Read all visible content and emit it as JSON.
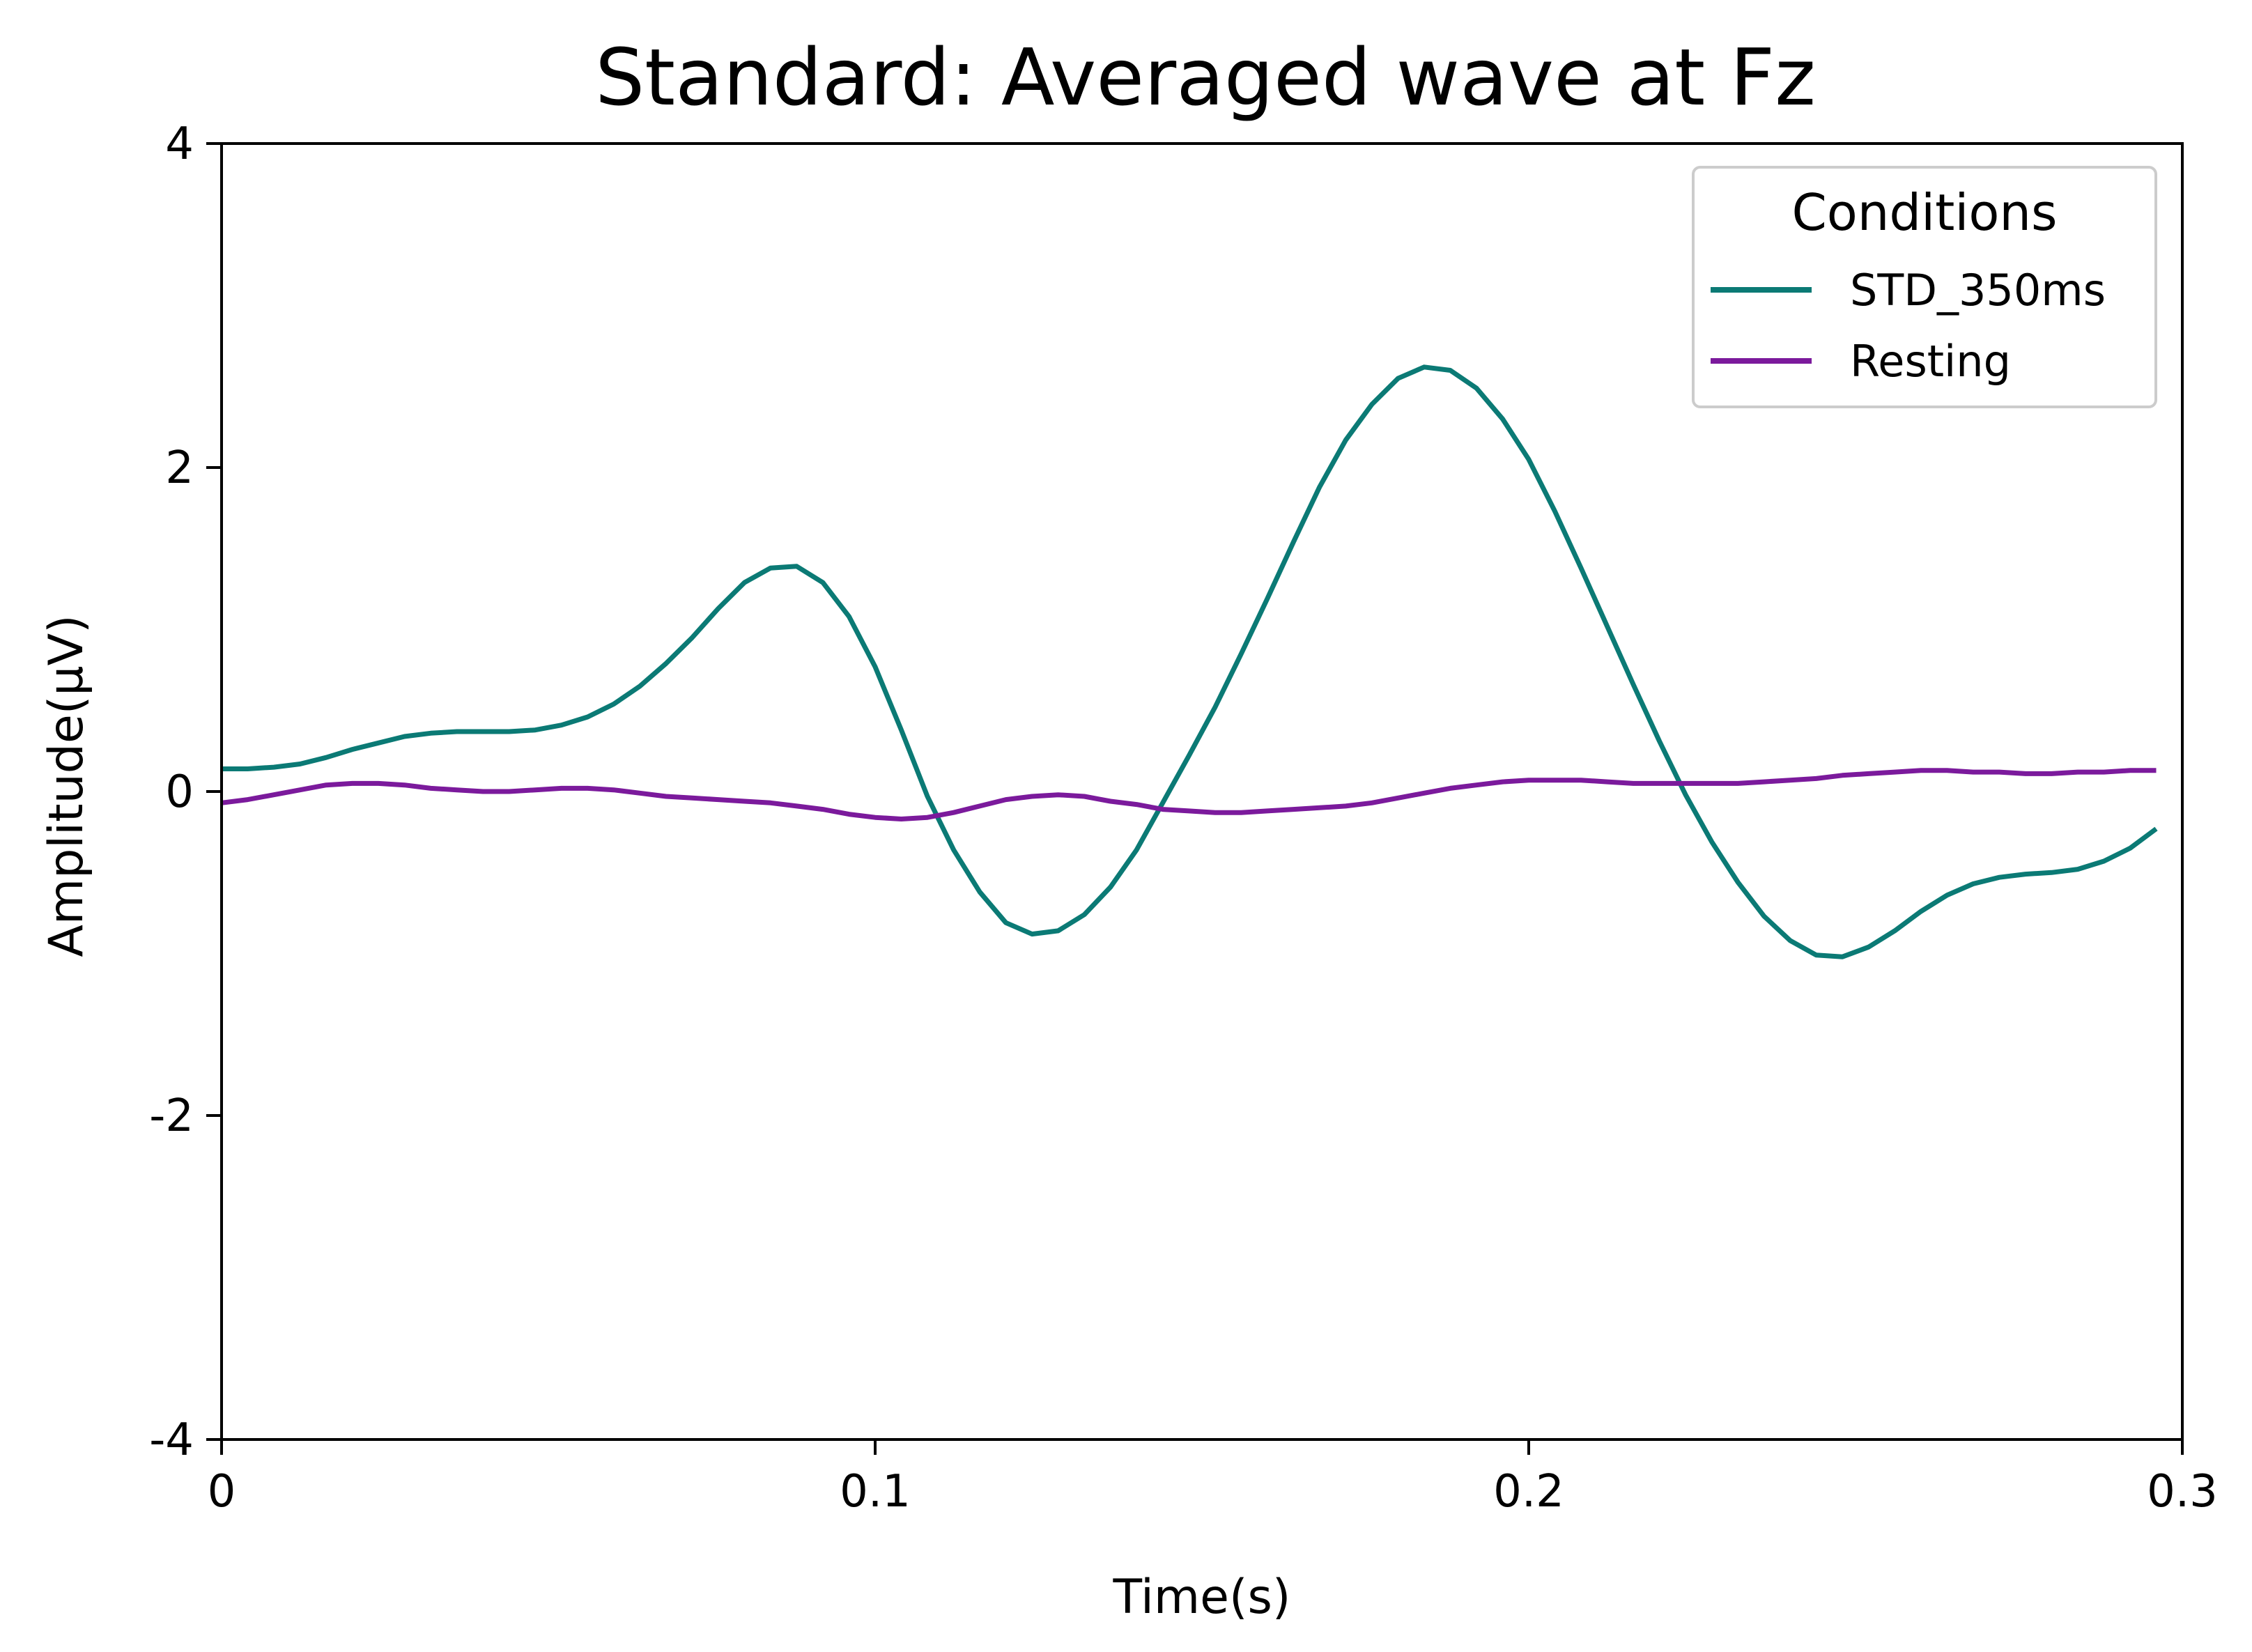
{
  "chart_data": {
    "type": "line",
    "title": "Standard: Averaged wave at Fz",
    "xlabel": "Time(s)",
    "ylabel": "Amplitude(µV)",
    "xlim": [
      0,
      0.3
    ],
    "ylim": [
      -4,
      4
    ],
    "x_ticks": [
      0,
      0.1,
      0.2,
      0.3
    ],
    "x_tick_labels": [
      "0",
      "0.1",
      "0.2",
      "0.3"
    ],
    "y_ticks": [
      -4,
      -2,
      0,
      2,
      4
    ],
    "y_tick_labels": [
      "-4",
      "-2",
      "0",
      "2",
      "4"
    ],
    "grid": false,
    "legend": {
      "title": "Conditions",
      "placement": "top-right"
    },
    "series": [
      {
        "name": "STD_350ms",
        "color": "#0b7a75",
        "x": [
          0,
          0.004,
          0.008,
          0.012,
          0.016,
          0.02,
          0.024,
          0.028,
          0.032,
          0.036,
          0.04,
          0.044,
          0.048,
          0.052,
          0.056,
          0.06,
          0.064,
          0.068,
          0.072,
          0.076,
          0.08,
          0.084,
          0.088,
          0.092,
          0.096,
          0.1,
          0.104,
          0.108,
          0.112,
          0.116,
          0.12,
          0.124,
          0.128,
          0.132,
          0.136,
          0.14,
          0.144,
          0.148,
          0.152,
          0.156,
          0.16,
          0.164,
          0.168,
          0.172,
          0.176,
          0.18,
          0.184,
          0.188,
          0.192,
          0.196,
          0.2,
          0.204,
          0.208,
          0.212,
          0.216,
          0.22,
          0.224,
          0.228,
          0.232,
          0.236,
          0.24,
          0.244,
          0.248,
          0.252,
          0.256,
          0.26,
          0.264,
          0.268,
          0.272,
          0.276,
          0.28,
          0.284,
          0.288,
          0.292,
          0.296
        ],
        "values": [
          0.14,
          0.14,
          0.15,
          0.17,
          0.21,
          0.26,
          0.3,
          0.34,
          0.36,
          0.37,
          0.37,
          0.37,
          0.38,
          0.41,
          0.46,
          0.54,
          0.65,
          0.79,
          0.95,
          1.13,
          1.29,
          1.38,
          1.39,
          1.29,
          1.08,
          0.77,
          0.38,
          -0.03,
          -0.36,
          -0.62,
          -0.81,
          -0.88,
          -0.86,
          -0.76,
          -0.59,
          -0.36,
          -0.07,
          0.22,
          0.52,
          0.85,
          1.19,
          1.54,
          1.88,
          2.17,
          2.39,
          2.55,
          2.62,
          2.6,
          2.49,
          2.3,
          2.05,
          1.73,
          1.38,
          1.02,
          0.66,
          0.31,
          -0.02,
          -0.31,
          -0.56,
          -0.77,
          -0.92,
          -1.01,
          -1.02,
          -0.96,
          -0.86,
          -0.74,
          -0.64,
          -0.57,
          -0.53,
          -0.51,
          -0.5,
          -0.48,
          -0.43,
          -0.35,
          -0.23
        ]
      },
      {
        "name": "Resting",
        "color": "#7b1a9c",
        "x": [
          0,
          0.004,
          0.008,
          0.012,
          0.016,
          0.02,
          0.024,
          0.028,
          0.032,
          0.036,
          0.04,
          0.044,
          0.048,
          0.052,
          0.056,
          0.06,
          0.064,
          0.068,
          0.072,
          0.076,
          0.08,
          0.084,
          0.088,
          0.092,
          0.096,
          0.1,
          0.104,
          0.108,
          0.112,
          0.116,
          0.12,
          0.124,
          0.128,
          0.132,
          0.136,
          0.14,
          0.144,
          0.148,
          0.152,
          0.156,
          0.16,
          0.164,
          0.168,
          0.172,
          0.176,
          0.18,
          0.184,
          0.188,
          0.192,
          0.196,
          0.2,
          0.204,
          0.208,
          0.212,
          0.216,
          0.22,
          0.224,
          0.228,
          0.232,
          0.236,
          0.24,
          0.244,
          0.248,
          0.252,
          0.256,
          0.26,
          0.264,
          0.268,
          0.272,
          0.276,
          0.28,
          0.284,
          0.288,
          0.292,
          0.296
        ],
        "values": [
          -0.07,
          -0.05,
          -0.02,
          0.01,
          0.04,
          0.05,
          0.05,
          0.04,
          0.02,
          0.01,
          0.0,
          0.0,
          0.01,
          0.02,
          0.02,
          0.01,
          -0.01,
          -0.03,
          -0.04,
          -0.05,
          -0.06,
          -0.07,
          -0.09,
          -0.11,
          -0.14,
          -0.16,
          -0.17,
          -0.16,
          -0.13,
          -0.09,
          -0.05,
          -0.03,
          -0.02,
          -0.03,
          -0.06,
          -0.08,
          -0.11,
          -0.12,
          -0.13,
          -0.13,
          -0.12,
          -0.11,
          -0.1,
          -0.09,
          -0.07,
          -0.04,
          -0.01,
          0.02,
          0.04,
          0.06,
          0.07,
          0.07,
          0.07,
          0.06,
          0.05,
          0.05,
          0.05,
          0.05,
          0.05,
          0.06,
          0.07,
          0.08,
          0.1,
          0.11,
          0.12,
          0.13,
          0.13,
          0.12,
          0.12,
          0.11,
          0.11,
          0.12,
          0.12,
          0.13,
          0.13
        ]
      }
    ]
  }
}
